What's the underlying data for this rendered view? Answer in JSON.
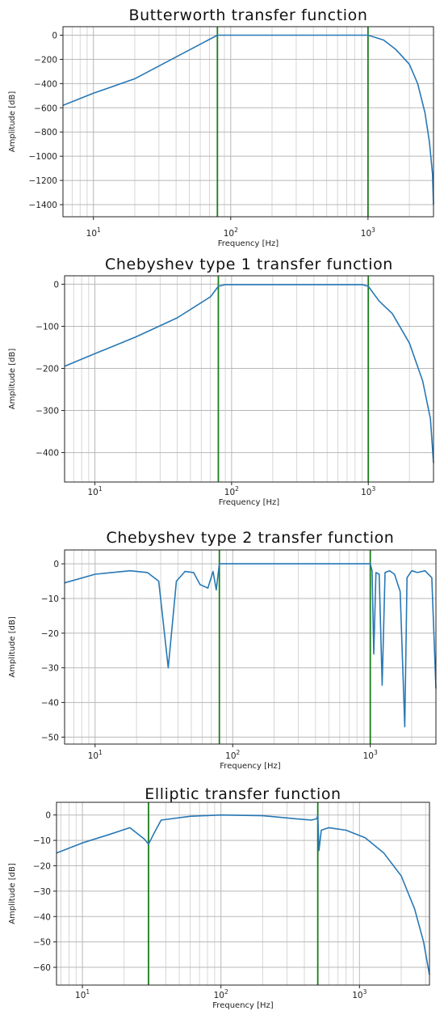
{
  "chart_data": [
    {
      "type": "line",
      "title": "Butterworth transfer function",
      "xlabel": "Frequency [Hz]",
      "ylabel": "Amplitude [dB]",
      "xscale": "log",
      "xlim": [
        6,
        3000
      ],
      "ylim": [
        -1500,
        70
      ],
      "xticks": [
        10,
        100,
        1000
      ],
      "xtick_labels": [
        {
          "base": "10",
          "exp": "1"
        },
        {
          "base": "10",
          "exp": "2"
        },
        {
          "base": "10",
          "exp": "3"
        }
      ],
      "yticks": [
        0,
        -200,
        -400,
        -600,
        -800,
        -1000,
        -1200,
        -1400
      ],
      "ytick_labels": [
        "0",
        "−200",
        "−400",
        "−600",
        "−800",
        "−1000",
        "−1200",
        "−1400"
      ],
      "grid": true,
      "vlines": [
        80,
        1000
      ],
      "vline_color": "#1a7d1a",
      "series": [
        {
          "color": "#2878b5",
          "x": [
            6,
            10,
            20,
            40,
            80,
            100,
            200,
            500,
            1000,
            1300,
            1600,
            2000,
            2300,
            2600,
            2800,
            2950,
            3000
          ],
          "y": [
            -580,
            -480,
            -360,
            -180,
            0,
            0,
            0,
            0,
            0,
            -40,
            -120,
            -240,
            -400,
            -640,
            -880,
            -1150,
            -1400
          ]
        }
      ]
    },
    {
      "type": "line",
      "title": "Chebyshev type 1 transfer function",
      "xlabel": "Frequency [Hz]",
      "ylabel": "Amplitude [dB]",
      "xscale": "log",
      "xlim": [
        6,
        3000
      ],
      "ylim": [
        -470,
        20
      ],
      "xticks": [
        10,
        100,
        1000
      ],
      "xtick_labels": [
        {
          "base": "10",
          "exp": "1"
        },
        {
          "base": "10",
          "exp": "2"
        },
        {
          "base": "10",
          "exp": "3"
        }
      ],
      "yticks": [
        0,
        -100,
        -200,
        -300,
        -400
      ],
      "ytick_labels": [
        "0",
        "−100",
        "−200",
        "−300",
        "−400"
      ],
      "grid": true,
      "vlines": [
        80,
        1000
      ],
      "vline_color": "#1a7d1a",
      "series": [
        {
          "color": "#2878b5",
          "x": [
            6,
            10,
            20,
            40,
            70,
            80,
            90,
            120,
            200,
            300,
            500,
            700,
            900,
            1000,
            1200,
            1500,
            2000,
            2500,
            2850,
            3000
          ],
          "y": [
            -195,
            -165,
            -125,
            -80,
            -30,
            -5,
            -1,
            -1,
            -1,
            -1,
            -1,
            -1,
            -1,
            -5,
            -40,
            -70,
            -140,
            -230,
            -320,
            -425
          ]
        }
      ]
    },
    {
      "type": "line",
      "title": "Chebyshev type 2 transfer function",
      "xlabel": "Frequency [Hz]",
      "ylabel": "Amplitude [dB]",
      "xscale": "log",
      "xlim": [
        6,
        3000
      ],
      "ylim": [
        -52,
        4
      ],
      "xticks": [
        10,
        100,
        1000
      ],
      "xtick_labels": [
        {
          "base": "10",
          "exp": "1"
        },
        {
          "base": "10",
          "exp": "2"
        },
        {
          "base": "10",
          "exp": "3"
        }
      ],
      "yticks": [
        0,
        -10,
        -20,
        -30,
        -40,
        -50
      ],
      "ytick_labels": [
        "0",
        "−10",
        "−20",
        "−30",
        "−40",
        "−50"
      ],
      "grid": true,
      "vlines": [
        80,
        1000
      ],
      "vline_color": "#1a7d1a",
      "series": [
        {
          "color": "#2878b5",
          "x": [
            6,
            10,
            18,
            24,
            29,
            34,
            39,
            45,
            52,
            58,
            66,
            72,
            76,
            80,
            90,
            200,
            500,
            1000,
            1030,
            1060,
            1100,
            1160,
            1220,
            1280,
            1380,
            1500,
            1650,
            1780,
            1850,
            2000,
            2200,
            2500,
            2800,
            3000
          ],
          "y": [
            -5.5,
            -3,
            -2,
            -2.5,
            -5,
            -30,
            -5,
            -2.2,
            -2.5,
            -6,
            -7,
            -2.2,
            -7.5,
            0,
            0,
            0,
            0,
            0,
            -2,
            -26,
            -2.5,
            -3,
            -35,
            -2.5,
            -2,
            -3,
            -8,
            -47,
            -4,
            -2,
            -2.5,
            -2,
            -4,
            -36
          ]
        }
      ]
    },
    {
      "type": "line",
      "title": "Elliptic transfer function",
      "xlabel": "Frequency [Hz]",
      "ylabel": "Amplitude [dB]",
      "xscale": "log",
      "xlim": [
        6.5,
        3200
      ],
      "ylim": [
        -67,
        5
      ],
      "xticks": [
        10,
        100,
        1000
      ],
      "xtick_labels": [
        {
          "base": "10",
          "exp": "1"
        },
        {
          "base": "10",
          "exp": "2"
        },
        {
          "base": "10",
          "exp": "3"
        }
      ],
      "yticks": [
        0,
        -10,
        -20,
        -30,
        -40,
        -50,
        -60
      ],
      "ytick_labels": [
        "0",
        "−10",
        "−20",
        "−30",
        "−40",
        "−50",
        "−60"
      ],
      "grid": true,
      "vlines": [
        30,
        500
      ],
      "vline_color": "#1a7d1a",
      "series": [
        {
          "color": "#2878b5",
          "x": [
            6.5,
            10,
            15,
            22,
            28,
            30,
            33,
            37,
            60,
            100,
            200,
            350,
            450,
            490,
            500,
            510,
            530,
            600,
            800,
            1100,
            1500,
            2000,
            2500,
            2900,
            3200
          ],
          "y": [
            -15,
            -11,
            -8,
            -5,
            -9.5,
            -11.5,
            -7,
            -2,
            -0.5,
            0,
            -0.3,
            -1.5,
            -2,
            -1.5,
            -0.2,
            -14,
            -6,
            -5,
            -6,
            -9,
            -15,
            -24,
            -37,
            -50,
            -63
          ]
        }
      ]
    }
  ]
}
